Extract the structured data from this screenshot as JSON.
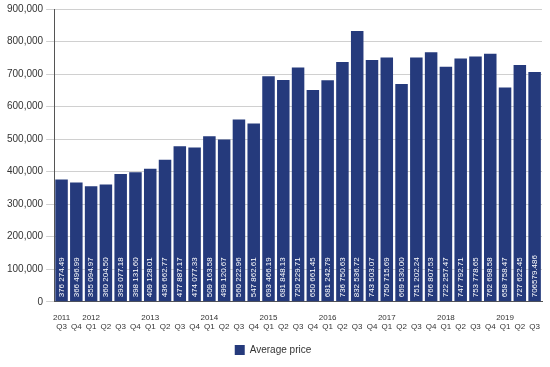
{
  "chart_data": {
    "type": "bar",
    "categories": [
      "Q3",
      "Q4",
      "Q1",
      "Q2",
      "Q3",
      "Q4",
      "Q1",
      "Q2",
      "Q3",
      "Q4",
      "Q1",
      "Q2",
      "Q3",
      "Q4",
      "Q1",
      "Q2",
      "Q3",
      "Q4",
      "Q1",
      "Q2",
      "Q3",
      "Q4",
      "Q1",
      "Q2",
      "Q3",
      "Q4",
      "Q1",
      "Q2",
      "Q3",
      "Q4",
      "Q1",
      "Q2",
      "Q3"
    ],
    "years": [
      "2011",
      null,
      "2012",
      null,
      null,
      null,
      "2013",
      null,
      null,
      null,
      "2014",
      null,
      null,
      null,
      "2015",
      null,
      null,
      null,
      "2016",
      null,
      null,
      null,
      "2017",
      null,
      null,
      null,
      "2018",
      null,
      null,
      null,
      "2019",
      null,
      null
    ],
    "series": [
      {
        "name": "Average price",
        "color": "#253a7c",
        "values": [
          376274.49,
          366496.99,
          355094.97,
          360204.5,
          393077.18,
          398131.6,
          409128.01,
          436662.77,
          477887.17,
          474077.33,
          509163.58,
          499120.67,
          560222.96,
          547862.61,
          693466.19,
          681848.13,
          720229.71,
          650661.45,
          681242.79,
          736750.63,
          832536.72,
          743503.07,
          750715.69,
          669530.0,
          751202.24,
          766807.53,
          722257.47,
          747792.71,
          753778.65,
          762698.58,
          658758.47,
          727622.45,
          706579.486
        ],
        "value_labels": [
          "376 274.49",
          "366 496.99",
          "355 094.97",
          "360 204.50",
          "393 077.18",
          "398 131.60",
          "409 128.01",
          "436 662.77",
          "477 887.17",
          "474 077.33",
          "509 163.58",
          "499 120.67",
          "560 222.96",
          "547 862.61",
          "693 466.19",
          "681 848.13",
          "720 229.71",
          "650 661.45",
          "681 242.79",
          "736 750.63",
          "832 536.72",
          "743 503.07",
          "750 715.69",
          "669 530.00",
          "751 202.24",
          "766 807.53",
          "722 257.47",
          "747 792.71",
          "753 778.65",
          "762 698.58",
          "658 758.47",
          "727 622.45",
          "706579.486"
        ]
      }
    ],
    "ylim": [
      0,
      900000
    ],
    "yticks": [
      0,
      {
        "value": 100000,
        "label": "100,000"
      },
      {
        "value": 200000,
        "label": "200,000"
      },
      {
        "value": 300000,
        "label": "300,000"
      },
      {
        "value": 400000,
        "label": "400,000"
      },
      {
        "value": 500000,
        "label": "500,000"
      },
      {
        "value": 600000,
        "label": "600,000"
      },
      {
        "value": 700000,
        "label": "700,000"
      },
      {
        "value": 800000,
        "label": "800,000"
      },
      {
        "value": 900000,
        "label": "900,000"
      }
    ],
    "grid": true,
    "legend": "bottom",
    "data_labels": true
  }
}
